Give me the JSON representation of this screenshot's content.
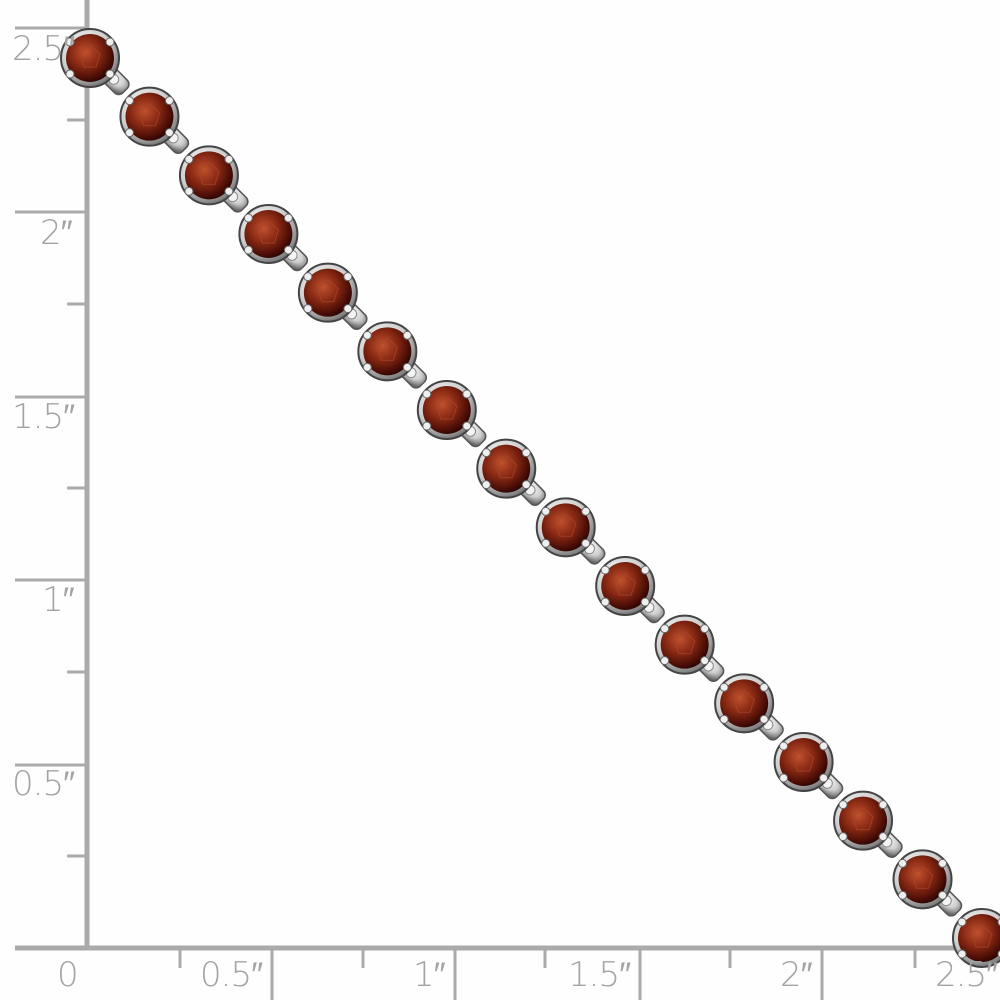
{
  "ruler": {
    "color": "#aaaaaa",
    "vertical_labels": [
      "2.5″",
      "2″",
      "1.5″",
      "1″",
      "0.5″"
    ],
    "horizontal_labels": [
      "0",
      "0.5″",
      "1″",
      "1.5″",
      "2″",
      "2.5″"
    ]
  },
  "product": {
    "stone_color": "#7a1f10",
    "metal_color": "#d8d8d8",
    "stone_count": 16
  }
}
